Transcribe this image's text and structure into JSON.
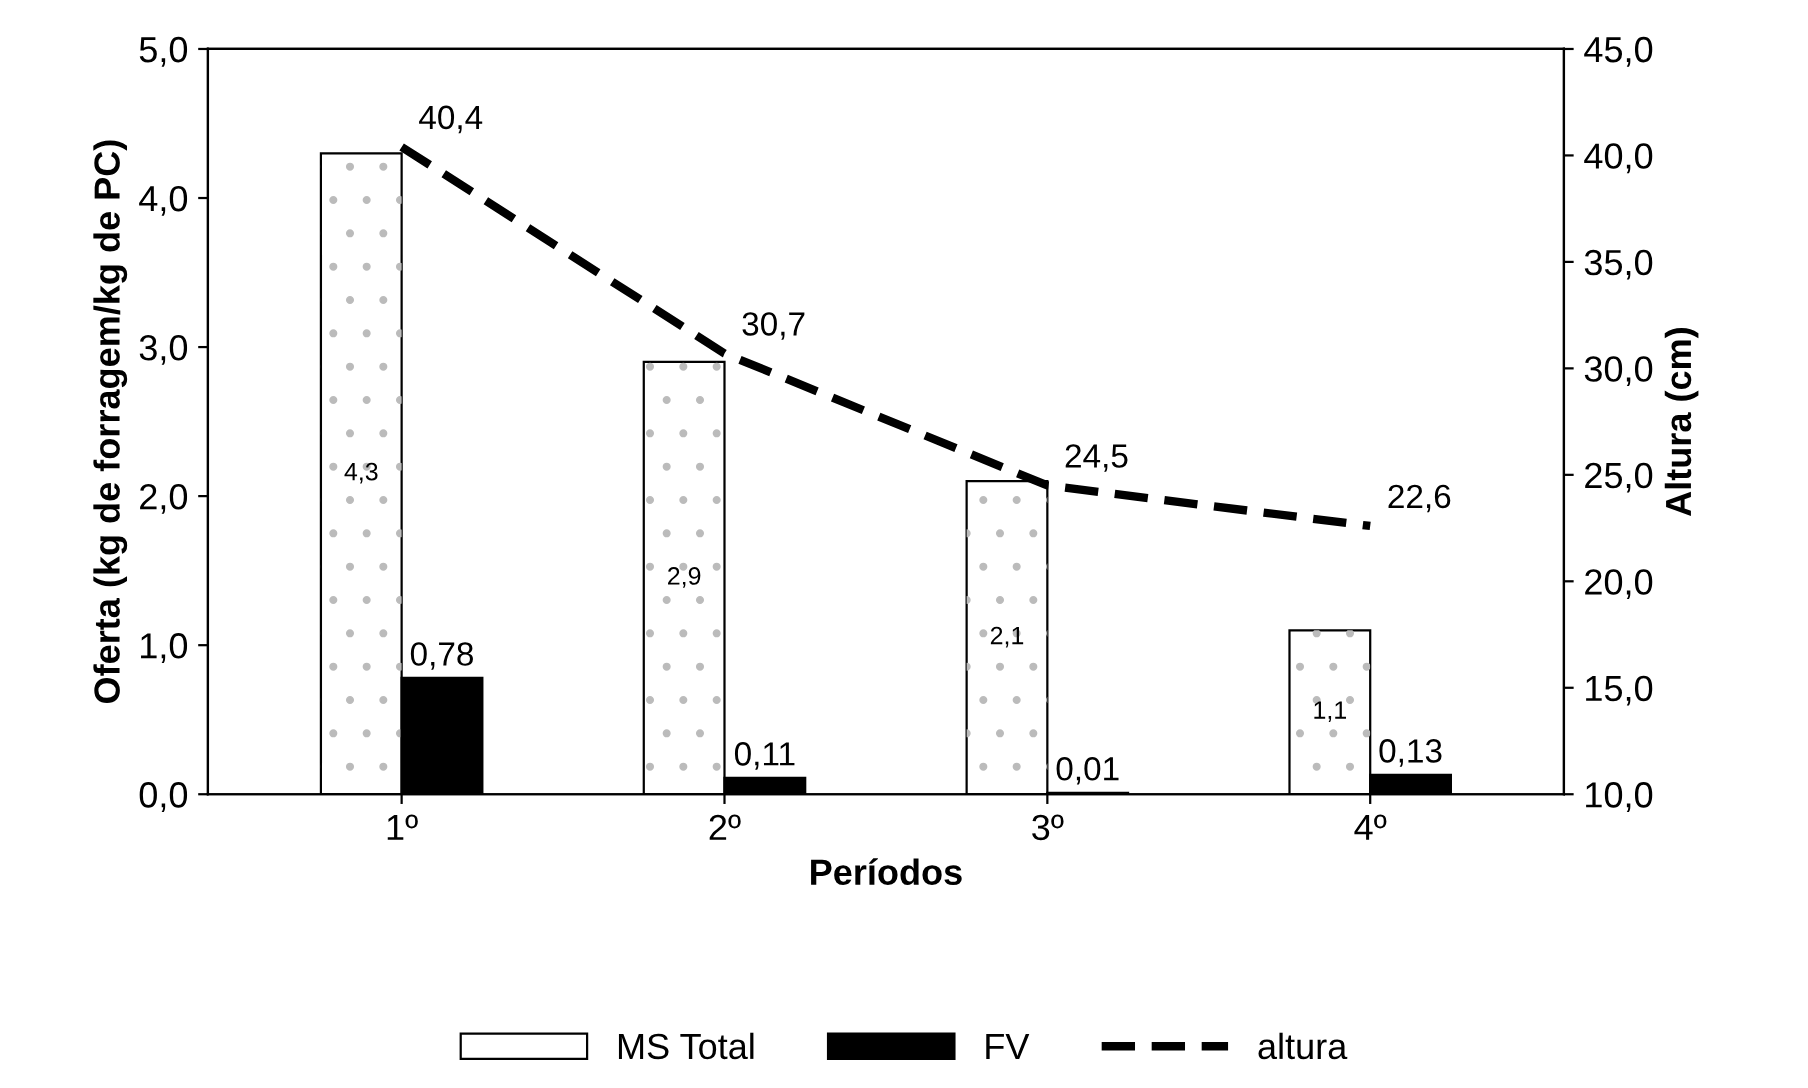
{
  "chart_data": {
    "type": "bar",
    "xlabel": "Períodos",
    "ylabel": "Oferta (kg de forragem/kg de PC)",
    "y2label": "Altura (cm)",
    "categories": [
      "1º",
      "2º",
      "3º",
      "4º"
    ],
    "series": [
      {
        "name": "MS Total",
        "color": "#ffffff",
        "values": [
          4.3,
          2.9,
          2.1,
          1.1
        ],
        "value_labels": [
          "4,3",
          "2,9",
          "2,1",
          "1,1"
        ]
      },
      {
        "name": "FV",
        "color": "#000000",
        "values": [
          0.78,
          0.11,
          0.01,
          0.13
        ],
        "value_labels": [
          "0,78",
          "0,11",
          "0,01",
          "0,13"
        ]
      },
      {
        "name": "altura",
        "type": "line",
        "axis": "y2",
        "color": "#000000",
        "line_style": "dashed",
        "values": [
          40.4,
          30.7,
          24.5,
          22.6
        ],
        "value_labels": [
          "40,4",
          "30,7",
          "24,5",
          "22,6"
        ]
      }
    ],
    "ylim": [
      0,
      5
    ],
    "yticks": [
      {
        "value": 0,
        "label": "0,0"
      },
      {
        "value": 1,
        "label": "1,0"
      },
      {
        "value": 2,
        "label": "2,0"
      },
      {
        "value": 3,
        "label": "3,0"
      },
      {
        "value": 4,
        "label": "4,0"
      },
      {
        "value": 5,
        "label": "5,0"
      }
    ],
    "y2lim": [
      10,
      45
    ],
    "y2ticks": [
      {
        "value": 10,
        "label": "10,0"
      },
      {
        "value": 15,
        "label": "15,0"
      },
      {
        "value": 20,
        "label": "20,0"
      },
      {
        "value": 25,
        "label": "25,0"
      },
      {
        "value": 30,
        "label": "30,0"
      },
      {
        "value": 35,
        "label": "35,0"
      },
      {
        "value": 40,
        "label": "40,0"
      },
      {
        "value": 45,
        "label": "45,0"
      }
    ],
    "legend": "bottom",
    "grid": false
  }
}
